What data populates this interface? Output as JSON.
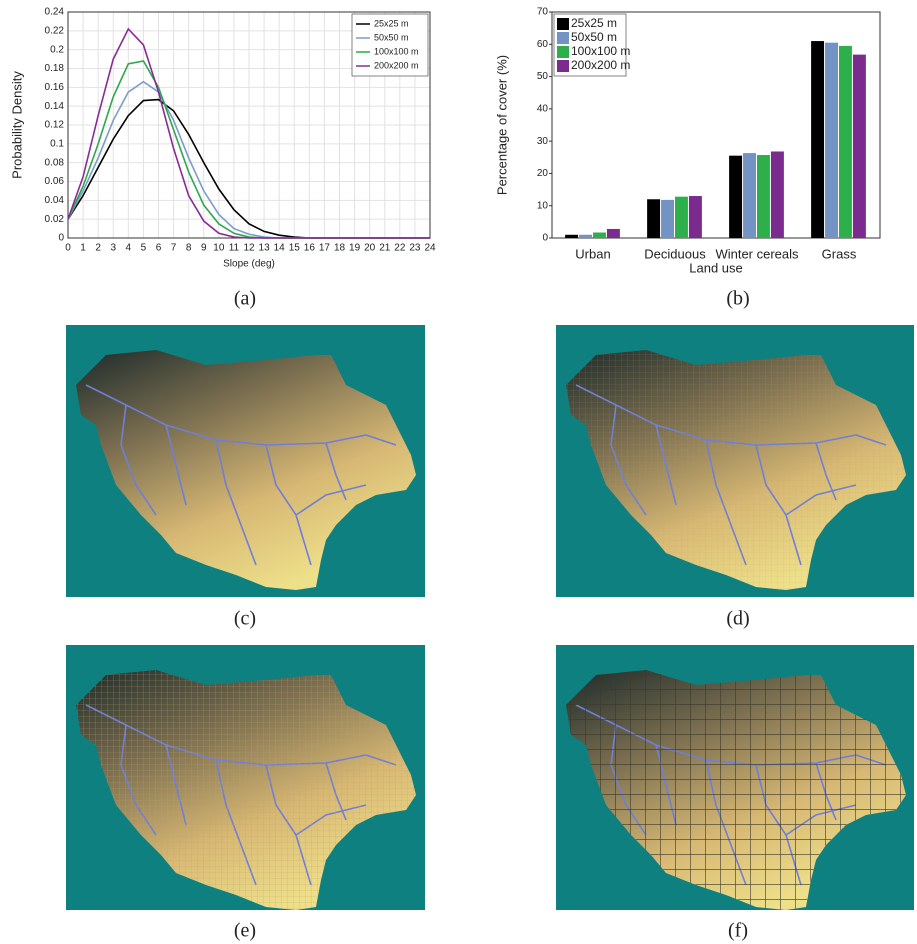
{
  "chart_data": [
    {
      "type": "line",
      "xlabel": "Slope (deg)",
      "ylabel": "Probability Density",
      "x": [
        0,
        1,
        2,
        3,
        4,
        5,
        6,
        7,
        8,
        9,
        10,
        11,
        12,
        13,
        14,
        15,
        16,
        17,
        18,
        19,
        20,
        21,
        22,
        23,
        24
      ],
      "series": [
        {
          "name": "25x25 m",
          "color": "#000000",
          "values": [
            0.02,
            0.045,
            0.075,
            0.105,
            0.13,
            0.146,
            0.147,
            0.135,
            0.11,
            0.08,
            0.052,
            0.03,
            0.015,
            0.007,
            0.003,
            0.001,
            0,
            0,
            0,
            0,
            0,
            0,
            0,
            0,
            0
          ]
        },
        {
          "name": "50x50 m",
          "color": "#7a9ccc",
          "values": [
            0.02,
            0.05,
            0.085,
            0.125,
            0.155,
            0.166,
            0.155,
            0.125,
            0.085,
            0.05,
            0.025,
            0.01,
            0.004,
            0.001,
            0,
            0,
            0,
            0,
            0,
            0,
            0,
            0,
            0,
            0,
            0
          ]
        },
        {
          "name": "100x100 m",
          "color": "#2ca84a",
          "values": [
            0.02,
            0.055,
            0.1,
            0.15,
            0.185,
            0.188,
            0.16,
            0.115,
            0.07,
            0.035,
            0.015,
            0.005,
            0.001,
            0,
            0,
            0,
            0,
            0,
            0,
            0,
            0,
            0,
            0,
            0,
            0
          ]
        },
        {
          "name": "200x200 m",
          "color": "#8a2a96",
          "values": [
            0.02,
            0.065,
            0.13,
            0.19,
            0.222,
            0.205,
            0.155,
            0.095,
            0.045,
            0.018,
            0.005,
            0.001,
            0,
            0,
            0,
            0,
            0,
            0,
            0,
            0,
            0,
            0,
            0,
            0,
            0
          ]
        }
      ],
      "xlim": [
        0,
        24
      ],
      "xticks": [
        0,
        1,
        2,
        3,
        4,
        5,
        6,
        7,
        8,
        9,
        10,
        11,
        12,
        13,
        14,
        15,
        16,
        17,
        18,
        19,
        20,
        21,
        22,
        23,
        24
      ],
      "ylim": [
        0,
        0.24
      ],
      "yticks": [
        0,
        0.02,
        0.04,
        0.06,
        0.08,
        0.1,
        0.12,
        0.14,
        0.16,
        0.18,
        0.2,
        0.22,
        0.24
      ],
      "grid": true,
      "legend": "upper right"
    },
    {
      "type": "bar",
      "xlabel": "Land use",
      "ylabel": "Percentage of cover (%)",
      "categories": [
        "Urban",
        "Deciduous",
        "Winter cereals",
        "Grass"
      ],
      "series": [
        {
          "name": "25x25 m",
          "color": "#000000",
          "values": [
            1,
            12,
            25.5,
            61
          ]
        },
        {
          "name": "50x50 m",
          "color": "#7393c4",
          "values": [
            1,
            11.8,
            26.3,
            60.5
          ]
        },
        {
          "name": "100x100 m",
          "color": "#2db04b",
          "values": [
            1.7,
            12.8,
            25.7,
            59.5
          ]
        },
        {
          "name": "200x200 m",
          "color": "#7b2a8e",
          "values": [
            2.8,
            13,
            26.8,
            56.8
          ]
        }
      ],
      "ylim": [
        0,
        70
      ],
      "yticks": [
        0,
        10,
        20,
        30,
        40,
        50,
        60,
        70
      ],
      "grid": false,
      "legend": "upper left"
    }
  ],
  "captions": [
    "(a)",
    "(b)",
    "(c)",
    "(d)",
    "(e)",
    "(f)"
  ]
}
